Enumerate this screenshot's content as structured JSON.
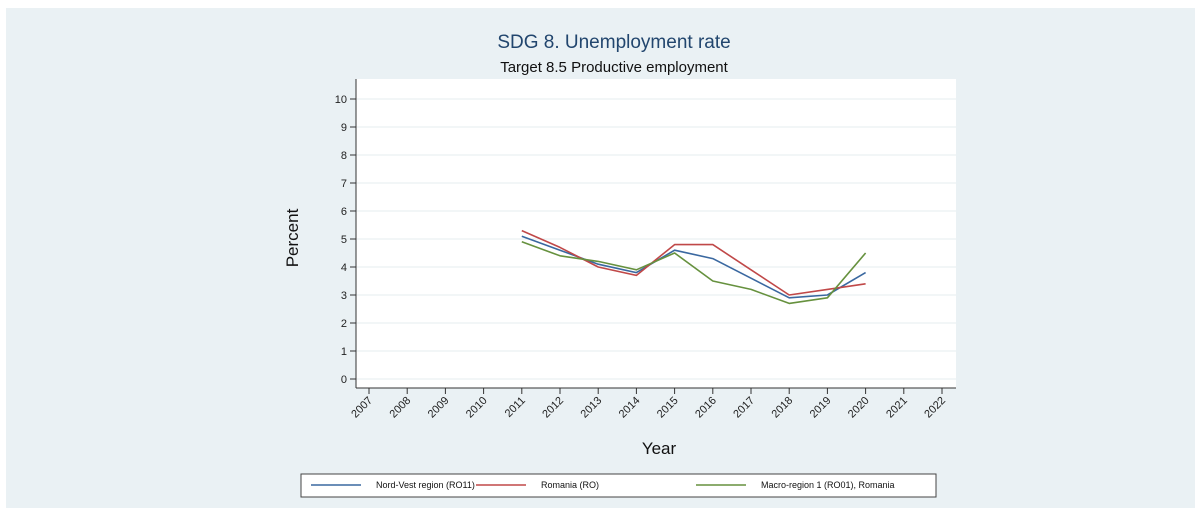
{
  "chart_data": {
    "type": "line",
    "title": "SDG 8. Unemployment rate",
    "subtitle": "Target 8.5 Productive employment",
    "xlabel": "Year",
    "ylabel": "Percent",
    "ylim": [
      0,
      10
    ],
    "yticks": [
      "0",
      "1",
      "2",
      "3",
      "4",
      "5",
      "6",
      "7",
      "8",
      "9",
      "10"
    ],
    "categories": [
      "2007",
      "2008",
      "2009",
      "2010",
      "2011",
      "2012",
      "2013",
      "2014",
      "2015",
      "2016",
      "2017",
      "2018",
      "2019",
      "2020",
      "2021",
      "2022"
    ],
    "grid": true,
    "legend_position": "bottom",
    "series": [
      {
        "name": "Nord-Vest region (RO11)",
        "color": "#3a68a0",
        "values": [
          null,
          null,
          null,
          null,
          5.1,
          4.6,
          4.1,
          3.8,
          4.6,
          4.3,
          3.6,
          2.9,
          3.0,
          3.8,
          null,
          null
        ]
      },
      {
        "name": "Romania (RO)",
        "color": "#c04848",
        "values": [
          null,
          null,
          null,
          null,
          5.3,
          4.7,
          4.0,
          3.7,
          4.8,
          4.8,
          3.9,
          3.0,
          3.2,
          3.4,
          null,
          null
        ]
      },
      {
        "name": "Macro-region 1 (RO01), Romania",
        "color": "#66913e",
        "values": [
          null,
          null,
          null,
          null,
          4.9,
          4.4,
          4.2,
          3.9,
          4.5,
          3.5,
          3.2,
          2.7,
          2.9,
          4.5,
          null,
          null
        ]
      }
    ],
    "colors": {
      "panel_bg": "#eaf1f4",
      "plot_bg": "#ffffff",
      "title": "#22466e",
      "grid": "#e6ecef"
    }
  }
}
